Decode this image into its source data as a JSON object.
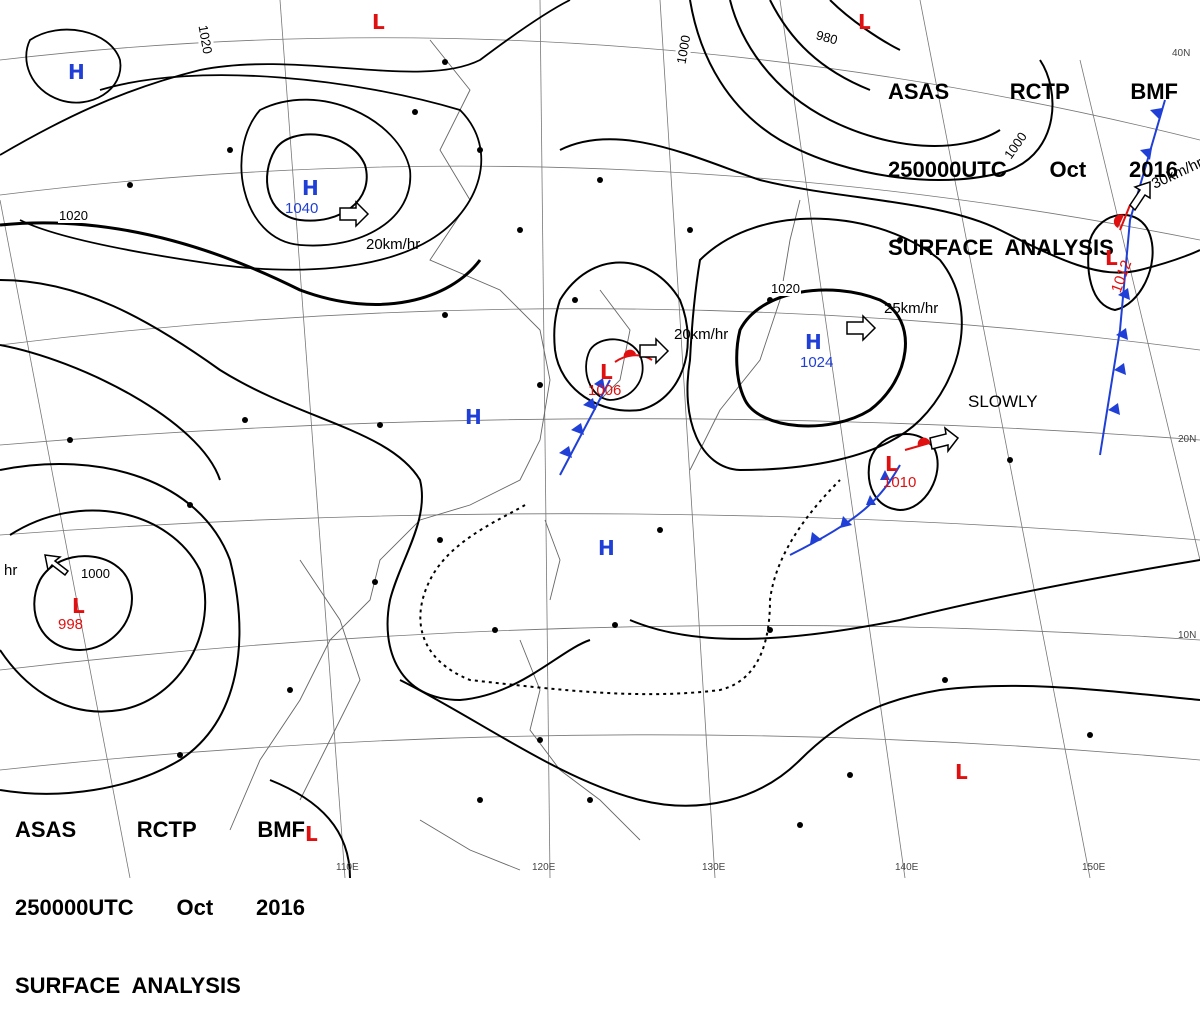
{
  "header": {
    "line1": [
      "ASAS",
      "RCTP",
      "BMF"
    ],
    "line2": [
      "250000UTC",
      "Oct",
      "2016"
    ],
    "line3": "SURFACE  ANALYSIS"
  },
  "colors": {
    "high": "#1f3fd6",
    "low": "#e01010",
    "cold_front": "#1f3fd6",
    "warm_front": "#e01010",
    "isobar": "#000000"
  },
  "systems": {
    "high_1040": {
      "symbol": "H",
      "pressure": "1040",
      "movement": "20km/hr"
    },
    "high_1024": {
      "symbol": "H",
      "pressure": "1024",
      "movement": "25km/hr"
    },
    "low_1006": {
      "symbol": "L",
      "pressure": "1006",
      "movement": "20km/hr"
    },
    "low_1010": {
      "symbol": "L",
      "pressure": "1010",
      "movement": "SLOWLY"
    },
    "low_1012": {
      "symbol": "L",
      "pressure": "1012",
      "movement": "30km/hr"
    },
    "low_998": {
      "symbol": "L",
      "pressure": "998",
      "movement": "hr"
    },
    "high_nw": {
      "symbol": "H"
    },
    "high_china": {
      "symbol": "H"
    },
    "high_scs": {
      "symbol": "H"
    },
    "low_top": {
      "symbol": "L"
    },
    "low_topright": {
      "symbol": "L"
    },
    "low_se": {
      "symbol": "L"
    },
    "low_bottom": {
      "symbol": "L"
    }
  },
  "isobar_labels": [
    "1020",
    "1020",
    "1000",
    "980",
    "1000",
    "1020",
    "1000"
  ],
  "grid_labels": {
    "lat": [
      "40N",
      "20N",
      "10N"
    ],
    "lon": [
      "110E",
      "120E",
      "130E",
      "140E",
      "150E"
    ]
  }
}
